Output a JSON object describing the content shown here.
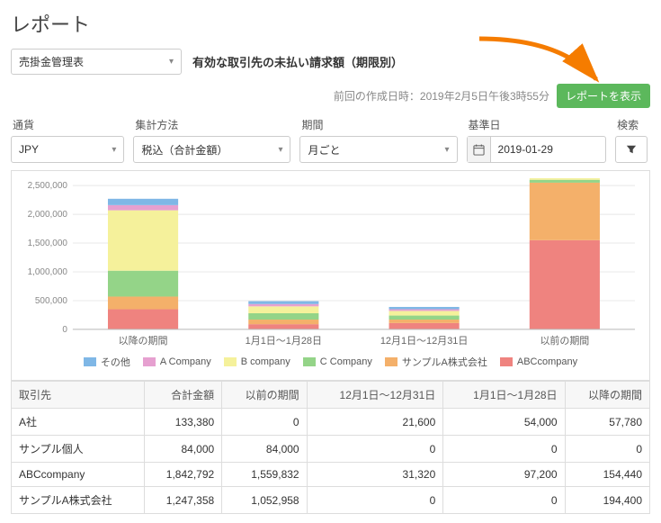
{
  "page_title": "レポート",
  "report_select": {
    "value": "売掛金管理表"
  },
  "subtitle": "有効な取引先の未払い請求額（期限別）",
  "meta": {
    "last_run_label": "前回の作成日時：2019年2月5日午後3時55分",
    "show_button": "レポートを表示"
  },
  "filters": {
    "currency": {
      "label": "通貨",
      "value": "JPY"
    },
    "method": {
      "label": "集計方法",
      "value": "税込（合計金額）"
    },
    "period": {
      "label": "期間",
      "value": "月ごと"
    },
    "ref_date": {
      "label": "基準日",
      "value": "2019-01-29"
    },
    "search": {
      "label": "検索"
    }
  },
  "chart": {
    "type": "stacked-bar",
    "y": {
      "min": 0,
      "max": 2500000,
      "step": 500000,
      "ticks": [
        "0",
        "500,000",
        "1,000,000",
        "1,500,000",
        "2,000,000",
        "2,500,000"
      ]
    },
    "categories": [
      "以降の期間",
      "1月1日～1月28日",
      "12月1日～12月31日",
      "以前の期間"
    ],
    "series_order": [
      "other",
      "acompany",
      "bcompany",
      "ccompany",
      "sampleA",
      "abccompany"
    ],
    "colors": {
      "other": "#7fb7e6",
      "acompany": "#e6a0d0",
      "bcompany": "#f5f19b",
      "ccompany": "#94d488",
      "sampleA": "#f4b06a",
      "abccompany": "#ef837f"
    },
    "data": {
      "other": [
        110000,
        50000,
        40000,
        60000
      ],
      "acompany": [
        90000,
        40000,
        30000,
        50000
      ],
      "bcompany": [
        1050000,
        120000,
        80000,
        40000
      ],
      "ccompany": [
        450000,
        110000,
        70000,
        50000
      ],
      "sampleA": [
        220000,
        80000,
        60000,
        1000000
      ],
      "abccompany": [
        350000,
        90000,
        110000,
        1550000
      ]
    },
    "legend": [
      {
        "key": "other",
        "label": "その他"
      },
      {
        "key": "acompany",
        "label": "A Company"
      },
      {
        "key": "bcompany",
        "label": "B company"
      },
      {
        "key": "ccompany",
        "label": "C Company"
      },
      {
        "key": "sampleA",
        "label": "サンプルA株式会社"
      },
      {
        "key": "abccompany",
        "label": "ABCcompany"
      }
    ],
    "grid_color": "#e8e8e8",
    "axis_color": "#bbb",
    "tick_font_size": 10,
    "bar_width_ratio": 0.5
  },
  "table": {
    "columns": [
      "取引先",
      "合計金額",
      "以前の期間",
      "12月1日～12月31日",
      "1月1日～1月28日",
      "以降の期間"
    ],
    "rows": [
      [
        "A社",
        "133,380",
        "0",
        "21,600",
        "54,000",
        "57,780"
      ],
      [
        "サンプル個人",
        "84,000",
        "84,000",
        "0",
        "0",
        "0"
      ],
      [
        "ABCcompany",
        "1,842,792",
        "1,559,832",
        "31,320",
        "97,200",
        "154,440"
      ],
      [
        "サンプルA株式会社",
        "1,247,358",
        "1,052,958",
        "0",
        "0",
        "194,400"
      ]
    ]
  },
  "arrow_color": "#f57c00"
}
